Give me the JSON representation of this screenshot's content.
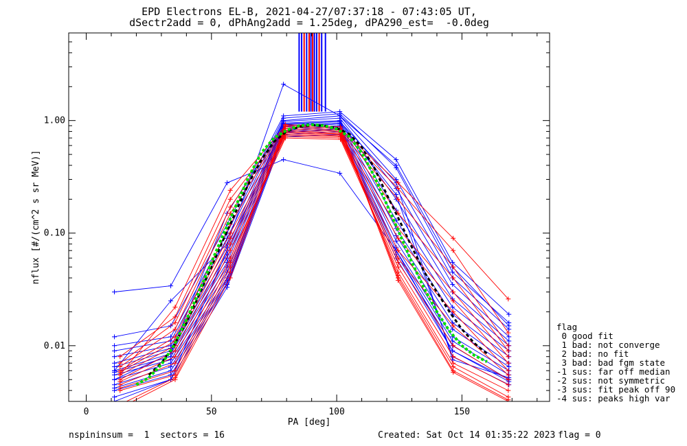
{
  "header": {
    "line1": "EPD Electrons EL-B, 2021-04-27/07:37:18 - 07:43:05 UT,",
    "line2": "dSectr2add = 0, dPhAng2add = 1.25deg, dPA290_est=  -0.0deg"
  },
  "footer": {
    "left": "nspininsum =  1  sectors = 16",
    "created": "Created: Sat Oct 14 01:35:22 2023",
    "flag": "flag = 0"
  },
  "legend": {
    "title": "flag",
    "items": [
      " 0 good fit",
      " 1 bad: not converge",
      " 2 bad: no fit",
      " 3 bad: bad fgm state",
      "-1 sus: far off median",
      "-2 sus: not symmetric",
      "-3 sus: fit peak off 90",
      "-4 sus: peaks high var"
    ]
  },
  "chart_data": {
    "type": "line",
    "xlabel": "PA [deg]",
    "ylabel": "nflux [#/(cm^2 s sr MeV)]",
    "xlim": [
      -7,
      185
    ],
    "ylim": [
      0.0032,
      6.0
    ],
    "yscale": "log",
    "x_ticks": [
      0,
      50,
      100,
      150
    ],
    "y_ticks": [
      0.01,
      0.1,
      1.0
    ],
    "y_tick_labels": [
      "0.01",
      "0.10",
      "1.00"
    ],
    "colors": {
      "blue": "#0000ff",
      "red": "#ff0000",
      "green": "#00dd00",
      "black": "#000000"
    },
    "pa_blue": [
      11.25,
      33.75,
      56.25,
      78.75,
      101.25,
      123.75,
      146.25,
      168.75
    ],
    "pa_red": [
      13.5,
      35.5,
      57.5,
      79.5,
      101.5,
      124.5,
      146.5,
      168.5
    ],
    "series": [
      {
        "color": "blue",
        "values": [
          0.03,
          0.034,
          0.28,
          0.45,
          0.34,
          0.07,
          0.009,
          0.005
        ]
      },
      {
        "color": "blue",
        "values": [
          0.006,
          0.025,
          0.08,
          2.1,
          1.1,
          0.4,
          0.05,
          0.015
        ]
      },
      {
        "color": "blue",
        "values": [
          0.012,
          0.015,
          0.12,
          1.1,
          1.2,
          0.45,
          0.055,
          0.019
        ]
      },
      {
        "color": "blue",
        "values": [
          0.01,
          0.012,
          0.1,
          1.05,
          1.15,
          0.38,
          0.045,
          0.016
        ]
      },
      {
        "color": "blue",
        "values": [
          0.009,
          0.011,
          0.09,
          1.0,
          1.1,
          0.3,
          0.04,
          0.014
        ]
      },
      {
        "color": "blue",
        "values": [
          0.008,
          0.01,
          0.075,
          0.98,
          1.05,
          0.25,
          0.035,
          0.012
        ]
      },
      {
        "color": "blue",
        "values": [
          0.007,
          0.0095,
          0.065,
          0.95,
          1.0,
          0.2,
          0.03,
          0.011
        ]
      },
      {
        "color": "blue",
        "values": [
          0.0065,
          0.009,
          0.06,
          0.92,
          0.98,
          0.16,
          0.026,
          0.01
        ]
      },
      {
        "color": "blue",
        "values": [
          0.006,
          0.0085,
          0.055,
          0.9,
          0.95,
          0.13,
          0.022,
          0.009
        ]
      },
      {
        "color": "blue",
        "values": [
          0.0058,
          0.008,
          0.05,
          0.88,
          0.93,
          0.11,
          0.019,
          0.008
        ]
      },
      {
        "color": "blue",
        "values": [
          0.0055,
          0.0075,
          0.045,
          0.85,
          0.9,
          0.095,
          0.016,
          0.007
        ]
      },
      {
        "color": "blue",
        "values": [
          0.005,
          0.007,
          0.04,
          0.82,
          0.88,
          0.085,
          0.014,
          0.0065
        ]
      },
      {
        "color": "blue",
        "values": [
          0.0045,
          0.0065,
          0.038,
          0.8,
          0.85,
          0.075,
          0.012,
          0.006
        ]
      },
      {
        "color": "blue",
        "values": [
          0.0042,
          0.006,
          0.036,
          0.78,
          0.83,
          0.07,
          0.011,
          0.0055
        ]
      },
      {
        "color": "blue",
        "values": [
          0.004,
          0.0055,
          0.035,
          0.75,
          0.8,
          0.065,
          0.01,
          0.005
        ]
      },
      {
        "color": "blue",
        "values": [
          0.0035,
          0.005,
          0.033,
          0.72,
          0.75,
          0.06,
          0.009,
          0.0048
        ]
      },
      {
        "color": "blue",
        "values": [
          0.0032,
          0.005,
          0.07,
          0.9,
          0.95,
          0.22,
          0.008,
          0.0045
        ]
      },
      {
        "color": "blue",
        "values": [
          0.005,
          0.0085,
          0.15,
          0.93,
          0.98,
          0.28,
          0.0075,
          0.0052
        ]
      },
      {
        "color": "red",
        "values": [
          0.0055,
          0.022,
          0.24,
          0.9,
          0.85,
          0.28,
          0.09,
          0.026
        ]
      },
      {
        "color": "red",
        "values": [
          0.008,
          0.018,
          0.2,
          0.88,
          0.82,
          0.25,
          0.07,
          0.013
        ]
      },
      {
        "color": "red",
        "values": [
          0.007,
          0.016,
          0.17,
          0.85,
          0.8,
          0.2,
          0.05,
          0.01
        ]
      },
      {
        "color": "red",
        "values": [
          0.0065,
          0.014,
          0.15,
          0.82,
          0.78,
          0.15,
          0.04,
          0.009
        ]
      },
      {
        "color": "red",
        "values": [
          0.006,
          0.012,
          0.12,
          0.8,
          0.76,
          0.11,
          0.03,
          0.008
        ]
      },
      {
        "color": "red",
        "values": [
          0.0058,
          0.011,
          0.1,
          0.78,
          0.75,
          0.09,
          0.025,
          0.007
        ]
      },
      {
        "color": "red",
        "values": [
          0.0055,
          0.01,
          0.09,
          0.76,
          0.73,
          0.07,
          0.02,
          0.006
        ]
      },
      {
        "color": "red",
        "values": [
          0.005,
          0.009,
          0.08,
          0.74,
          0.72,
          0.06,
          0.015,
          0.0055
        ]
      },
      {
        "color": "red",
        "values": [
          0.0048,
          0.008,
          0.07,
          0.72,
          0.7,
          0.055,
          0.01,
          0.005
        ]
      },
      {
        "color": "red",
        "values": [
          0.0045,
          0.007,
          0.06,
          0.7,
          0.68,
          0.05,
          0.008,
          0.0045
        ]
      },
      {
        "color": "red",
        "values": [
          0.0042,
          0.006,
          0.055,
          0.8,
          0.76,
          0.045,
          0.007,
          0.004
        ]
      },
      {
        "color": "red",
        "values": [
          0.004,
          0.0055,
          0.05,
          0.85,
          0.8,
          0.042,
          0.0065,
          0.0035
        ]
      },
      {
        "color": "red",
        "values": [
          0.003,
          0.0052,
          0.045,
          0.92,
          0.88,
          0.04,
          0.006,
          0.0033
        ]
      },
      {
        "color": "red",
        "values": [
          0.0028,
          0.005,
          0.04,
          0.9,
          0.85,
          0.038,
          0.0058,
          0.0032
        ]
      }
    ],
    "fit_green": {
      "x": [
        20,
        25,
        30,
        35,
        40,
        45,
        50,
        55,
        60,
        65,
        70,
        75,
        80,
        85,
        90,
        95,
        100,
        105,
        110,
        115,
        120,
        125,
        130,
        135,
        140,
        145,
        150,
        155,
        160
      ],
      "y": [
        0.0045,
        0.0052,
        0.0068,
        0.01,
        0.017,
        0.03,
        0.055,
        0.1,
        0.18,
        0.32,
        0.52,
        0.7,
        0.82,
        0.9,
        0.92,
        0.9,
        0.84,
        0.72,
        0.52,
        0.32,
        0.18,
        0.1,
        0.055,
        0.032,
        0.02,
        0.0135,
        0.01,
        0.0082,
        0.0072
      ]
    },
    "fit_black": {
      "x": [
        25,
        30,
        35,
        40,
        45,
        50,
        55,
        60,
        65,
        70,
        75,
        80,
        85,
        90,
        95,
        100,
        105,
        110,
        115,
        120,
        125,
        130,
        135,
        140,
        145,
        150,
        155,
        160
      ],
      "y": [
        0.0055,
        0.007,
        0.01,
        0.016,
        0.028,
        0.05,
        0.09,
        0.16,
        0.28,
        0.45,
        0.65,
        0.8,
        0.88,
        0.91,
        0.9,
        0.86,
        0.76,
        0.58,
        0.38,
        0.22,
        0.13,
        0.075,
        0.045,
        0.03,
        0.02,
        0.014,
        0.0105,
        0.0085
      ]
    },
    "peak_bars": [
      {
        "x": 85.0,
        "color": "blue"
      },
      {
        "x": 86.0,
        "color": "blue"
      },
      {
        "x": 87.0,
        "color": "red"
      },
      {
        "x": 88.0,
        "color": "blue"
      },
      {
        "x": 89.0,
        "color": "red"
      },
      {
        "x": 89.7,
        "color": "blue"
      },
      {
        "x": 90.4,
        "color": "red"
      },
      {
        "x": 91.1,
        "color": "blue"
      },
      {
        "x": 92.0,
        "color": "blue"
      },
      {
        "x": 93.0,
        "color": "red"
      },
      {
        "x": 94.0,
        "color": "blue"
      },
      {
        "x": 95.5,
        "color": "blue"
      }
    ],
    "peak_bar_bottom": 1.2
  }
}
